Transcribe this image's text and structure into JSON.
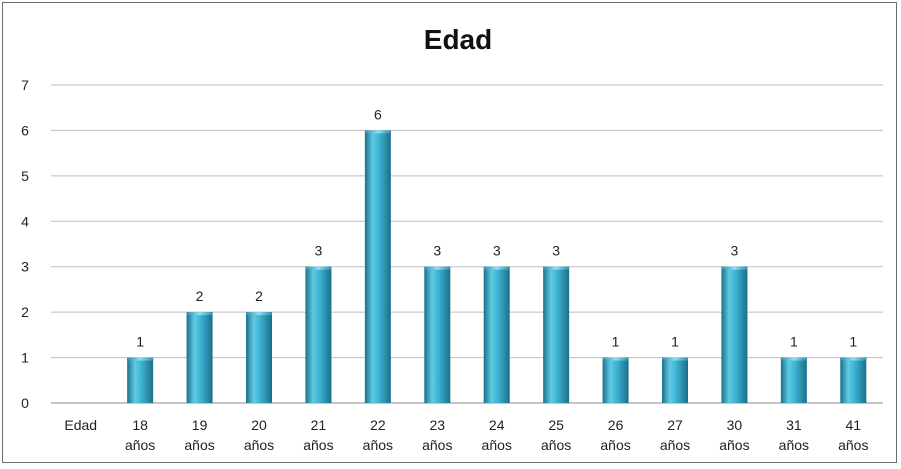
{
  "chart_data": {
    "type": "bar",
    "title": "Edad",
    "xlabel": "",
    "ylabel": "",
    "ylim": [
      0,
      7
    ],
    "yticks": [
      "0",
      "1",
      "2",
      "3",
      "4",
      "5",
      "6",
      "7"
    ],
    "grid": true,
    "legend": "none",
    "categories": [
      [
        "Edad"
      ],
      [
        "18",
        "años"
      ],
      [
        "19",
        "años"
      ],
      [
        "20",
        "años"
      ],
      [
        "21",
        "años"
      ],
      [
        "22",
        "años"
      ],
      [
        "23",
        "años"
      ],
      [
        "24",
        "años"
      ],
      [
        "25",
        "años"
      ],
      [
        "26",
        "años"
      ],
      [
        "27",
        "años"
      ],
      [
        "30",
        "años"
      ],
      [
        "31",
        "años"
      ],
      [
        "41",
        "años"
      ]
    ],
    "values": [
      null,
      1,
      2,
      2,
      3,
      6,
      3,
      3,
      3,
      1,
      1,
      3,
      1,
      1
    ],
    "data_labels": [
      "",
      "1",
      "2",
      "2",
      "3",
      "6",
      "3",
      "3",
      "3",
      "1",
      "1",
      "3",
      "1",
      "1"
    ],
    "colors": {
      "bar_light": "#5fcbe3",
      "bar_mid": "#2fa5c6",
      "bar_dark": "#1b6f89",
      "grid": "#bfbfbf",
      "axis": "#8c8c8c"
    }
  }
}
